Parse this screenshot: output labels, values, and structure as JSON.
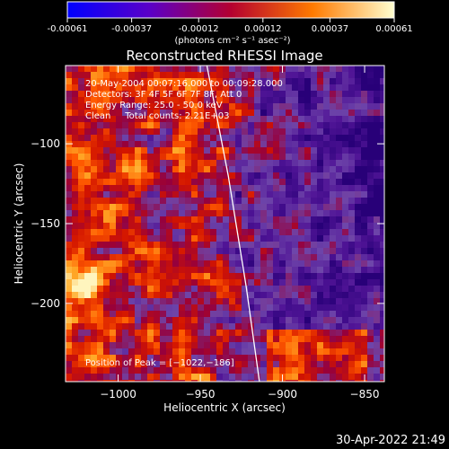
{
  "chart_data": {
    "type": "heatmap",
    "title": "Reconstructed RHESSI Image",
    "xlabel": "Heliocentric X (arcsec)",
    "ylabel": "Heliocentric Y (arcsec)",
    "xlim": [
      -1032,
      -838
    ],
    "ylim": [
      -249,
      -51
    ],
    "x_ticks": [
      -1000,
      -950,
      -900,
      -850
    ],
    "x_tick_labels": [
      "−1000",
      "−950",
      "−900",
      "−850"
    ],
    "y_ticks": [
      -100,
      -150,
      -200
    ],
    "y_tick_labels": [
      "−100",
      "−150",
      "−200"
    ],
    "colorbar": {
      "ticks": [
        -0.00061,
        -0.00037,
        -0.00012,
        0.00012,
        0.00037,
        0.00061
      ],
      "tick_labels": [
        "-0.00061",
        "-0.00037",
        "-0.00012",
        "0.00012",
        "0.00037",
        "0.00061"
      ],
      "label": "(photons cm⁻² s⁻¹ asec⁻²)",
      "min": -0.00061,
      "max": 0.00061
    },
    "annotations": [
      "20-May-2004 00:07:16.000 to 00:09:28.000",
      "Detectors: 3F 4F 5F 6F 7F 8F, Att 0",
      "Energy Range: 25.0 - 50.0 keV",
      "Clean     Total counts: 2.21E+03"
    ],
    "peak_label": "Position of Peak = [−1022,−186]",
    "peak": [
      -1022,
      -186
    ],
    "limb_curve": {
      "x": [
        -946,
        -933,
        -922,
        -914
      ],
      "y": [
        -51,
        -120,
        -190,
        -249
      ]
    }
  },
  "timestamp": "30-Apr-2022 21:49"
}
